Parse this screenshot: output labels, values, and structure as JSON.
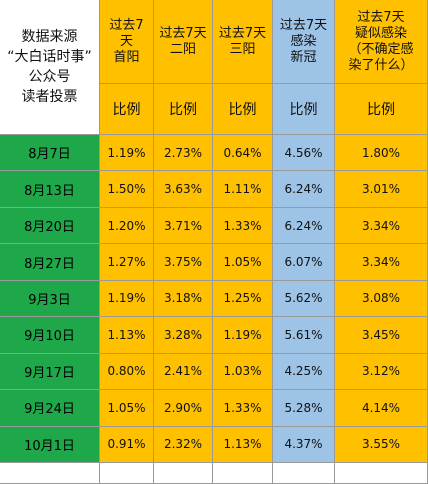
{
  "table": {
    "source_title": "数据来源\n“大白话时事”\n公众号\n读者投票",
    "headers": [
      "过去7\n天\n首阳",
      "过去7天\n二阳",
      "过去7天\n三阳",
      "过去7天\n感染\n新冠",
      "过去7天\n疑似感染\n（不确定感\n染了什么）"
    ],
    "subheader": "比例",
    "rows": [
      {
        "date": "8月7日",
        "values": [
          "1.19%",
          "2.73%",
          "0.64%",
          "4.56%",
          "1.80%"
        ]
      },
      {
        "date": "8月13日",
        "values": [
          "1.50%",
          "3.63%",
          "1.11%",
          "6.24%",
          "3.01%"
        ]
      },
      {
        "date": "8月20日",
        "values": [
          "1.20%",
          "3.71%",
          "1.33%",
          "6.24%",
          "3.34%"
        ]
      },
      {
        "date": "8月27日",
        "values": [
          "1.27%",
          "3.75%",
          "1.05%",
          "6.07%",
          "3.34%"
        ]
      },
      {
        "date": "9月3日",
        "values": [
          "1.19%",
          "3.18%",
          "1.25%",
          "5.62%",
          "3.08%"
        ]
      },
      {
        "date": "9月10日",
        "values": [
          "1.13%",
          "3.28%",
          "1.19%",
          "5.61%",
          "3.45%"
        ]
      },
      {
        "date": "9月17日",
        "values": [
          "0.80%",
          "2.41%",
          "1.03%",
          "4.25%",
          "3.12%"
        ]
      },
      {
        "date": "9月24日",
        "values": [
          "1.05%",
          "2.90%",
          "1.33%",
          "5.28%",
          "4.14%"
        ]
      },
      {
        "date": "10月1日",
        "values": [
          "0.91%",
          "2.32%",
          "1.13%",
          "4.37%",
          "3.55%"
        ]
      }
    ]
  },
  "watermark": "",
  "colors": {
    "header_orange": "#ffc000",
    "covid_blue": "#9dc3e6",
    "date_green": "#1fa84a"
  }
}
